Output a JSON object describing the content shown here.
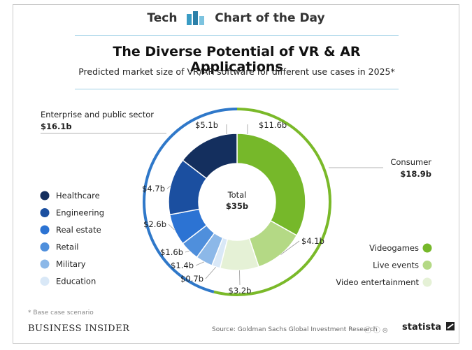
{
  "header": {
    "brand_left": "Tech",
    "brand_right": "Chart of the Day"
  },
  "title": "The Diverse Potential of VR & AR Applications",
  "subtitle": "Predicted market size of VR/AR software for different use cases in 2025*",
  "footnote": "* Base case scenario",
  "publisher": "BUSINESS INSIDER",
  "source": "Source: Goldman Sachs Global Investment Research",
  "cc_icons": "ⓒ ⓘ ⊜",
  "statista": "statista",
  "colors": {
    "consumer_outer": "#7ab929",
    "enterprise_outer": "#2f78c9",
    "brand_blue": "#3a9cc4"
  },
  "chart_data": {
    "type": "pie",
    "center_label": "Total",
    "center_value": "$35b",
    "groups": [
      {
        "name": "Enterprise and public sector",
        "value_label": "$16.1b",
        "value": 16.1,
        "color": "#2f78c9"
      },
      {
        "name": "Consumer",
        "value_label": "$18.9b",
        "value": 18.9,
        "color": "#7ab929"
      }
    ],
    "slices": [
      {
        "name": "Videogames",
        "value": 11.6,
        "value_label": "$11.6b",
        "color": "#76b82a",
        "group": "Consumer"
      },
      {
        "name": "Live events",
        "value": 4.1,
        "value_label": "$4.1b",
        "color": "#b4d985",
        "group": "Consumer"
      },
      {
        "name": "Video entertainment",
        "value": 3.2,
        "value_label": "$3.2b",
        "color": "#e5f1d6",
        "group": "Consumer"
      },
      {
        "name": "Education",
        "value": 0.7,
        "value_label": "$0.7b",
        "color": "#d9e8f7",
        "group": "Enterprise and public sector"
      },
      {
        "name": "Military",
        "value": 1.4,
        "value_label": "$1.4b",
        "color": "#8cb8e8",
        "group": "Enterprise and public sector"
      },
      {
        "name": "Retail",
        "value": 1.6,
        "value_label": "$1.6b",
        "color": "#4f8fdc",
        "group": "Enterprise and public sector"
      },
      {
        "name": "Real estate",
        "value": 2.6,
        "value_label": "$2.6b",
        "color": "#2c73d3",
        "group": "Enterprise and public sector"
      },
      {
        "name": "Engineering",
        "value": 4.7,
        "value_label": "$4.7b",
        "color": "#1b4fa0",
        "group": "Enterprise and public sector"
      },
      {
        "name": "Healthcare",
        "value": 5.1,
        "value_label": "$5.1b",
        "color": "#142f5e",
        "group": "Enterprise and public sector"
      }
    ],
    "legend_left": [
      "Healthcare",
      "Engineering",
      "Real estate",
      "Retail",
      "Military",
      "Education"
    ],
    "legend_right": [
      "Videogames",
      "Live events",
      "Video entertainment"
    ]
  }
}
